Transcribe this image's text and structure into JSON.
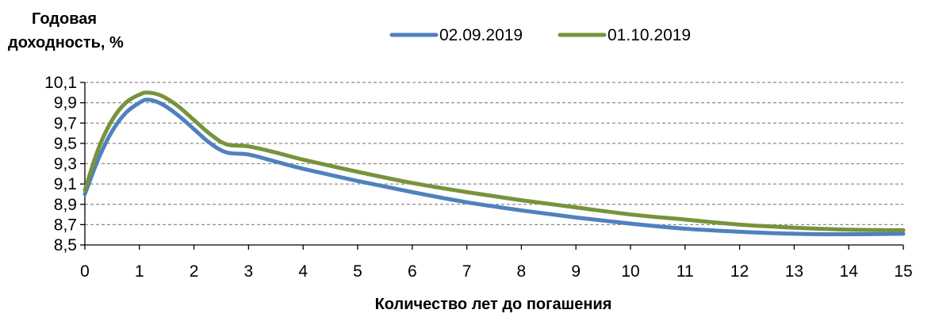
{
  "chart_data": {
    "type": "line",
    "ylabel_lines": [
      "Годовая",
      "доходность, %"
    ],
    "xlabel": "Количество лет до погашения",
    "xlim": [
      0,
      15
    ],
    "ylim": [
      8.5,
      10.1
    ],
    "x_ticks": [
      0,
      1,
      2,
      3,
      4,
      5,
      6,
      7,
      8,
      9,
      10,
      11,
      12,
      13,
      14,
      15
    ],
    "x_tick_labels": [
      "0",
      "1",
      "2",
      "3",
      "4",
      "5",
      "6",
      "7",
      "8",
      "9",
      "10",
      "11",
      "12",
      "13",
      "14",
      "15"
    ],
    "y_ticks": [
      8.5,
      8.7,
      8.9,
      9.1,
      9.3,
      9.5,
      9.7,
      9.9,
      10.1
    ],
    "y_tick_labels": [
      "8,5",
      "8,7",
      "8,9",
      "9,1",
      "9,3",
      "9,5",
      "9,7",
      "9,9",
      "10,1"
    ],
    "grid": "horizontal dashed",
    "legend_position": "top",
    "series": [
      {
        "name": "02.09.2019",
        "color": "#4f81bd",
        "points": [
          [
            0,
            9.0
          ],
          [
            0.25,
            9.35
          ],
          [
            0.5,
            9.62
          ],
          [
            0.75,
            9.8
          ],
          [
            1.0,
            9.9
          ],
          [
            1.15,
            9.93
          ],
          [
            1.4,
            9.89
          ],
          [
            1.7,
            9.78
          ],
          [
            2.0,
            9.64
          ],
          [
            2.3,
            9.5
          ],
          [
            2.6,
            9.41
          ],
          [
            3.0,
            9.39
          ],
          [
            3.5,
            9.32
          ],
          [
            4.0,
            9.25
          ],
          [
            5.0,
            9.13
          ],
          [
            6.0,
            9.02
          ],
          [
            7.0,
            8.92
          ],
          [
            8.0,
            8.84
          ],
          [
            9.0,
            8.77
          ],
          [
            10.0,
            8.71
          ],
          [
            11.0,
            8.66
          ],
          [
            12.0,
            8.63
          ],
          [
            13.0,
            8.61
          ],
          [
            14.0,
            8.605
          ],
          [
            15.0,
            8.61
          ]
        ]
      },
      {
        "name": "01.10.2019",
        "color": "#77933c",
        "points": [
          [
            0,
            9.04
          ],
          [
            0.25,
            9.45
          ],
          [
            0.5,
            9.73
          ],
          [
            0.75,
            9.9
          ],
          [
            1.0,
            9.98
          ],
          [
            1.15,
            10.0
          ],
          [
            1.4,
            9.97
          ],
          [
            1.7,
            9.87
          ],
          [
            2.0,
            9.73
          ],
          [
            2.3,
            9.59
          ],
          [
            2.6,
            9.49
          ],
          [
            3.0,
            9.47
          ],
          [
            3.5,
            9.41
          ],
          [
            4.0,
            9.34
          ],
          [
            5.0,
            9.22
          ],
          [
            6.0,
            9.11
          ],
          [
            7.0,
            9.02
          ],
          [
            8.0,
            8.94
          ],
          [
            9.0,
            8.87
          ],
          [
            10.0,
            8.8
          ],
          [
            11.0,
            8.75
          ],
          [
            12.0,
            8.7
          ],
          [
            13.0,
            8.67
          ],
          [
            14.0,
            8.65
          ],
          [
            15.0,
            8.645
          ]
        ]
      }
    ]
  }
}
